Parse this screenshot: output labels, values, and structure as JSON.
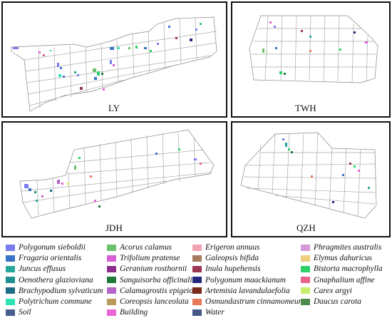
{
  "panels": [
    {
      "id": "LY",
      "label": "LY"
    },
    {
      "id": "TWH",
      "label": "TWH"
    },
    {
      "id": "JDH",
      "label": "JDH"
    },
    {
      "id": "QZH",
      "label": "QZH"
    }
  ],
  "legend": [
    {
      "label": "Polygonum sieboldii",
      "color": "#7b7bef",
      "italic": true
    },
    {
      "label": "Fragaria orientalis",
      "color": "#3a72c7",
      "italic": true
    },
    {
      "label": "Juncus effusus",
      "color": "#25a89a",
      "italic": true
    },
    {
      "label": "Oenothera glazioviana",
      "color": "#1f8f8f",
      "italic": true
    },
    {
      "label": "Brachypodium sylvaticum",
      "color": "#1b6e86",
      "italic": true
    },
    {
      "label": "Polytrichum commune",
      "color": "#2fe3b7",
      "italic": true
    },
    {
      "label": "Soil",
      "color": "#465c8c",
      "italic": true
    },
    {
      "label": "Acorus calamus",
      "color": "#6cc26c",
      "italic": true
    },
    {
      "label": "Trifolium pratense",
      "color": "#d85fd8",
      "italic": true
    },
    {
      "label": "Geranium rosthornii",
      "color": "#8c2f8c",
      "italic": true
    },
    {
      "label": "Sanguisorba officinalis",
      "color": "#1d7a3a",
      "italic": true
    },
    {
      "label": "Calamagrostis epigeios",
      "color": "#b565c9",
      "italic": true
    },
    {
      "label": "Coreopsis lanceolata",
      "color": "#b99a5c",
      "italic": true
    },
    {
      "label": "Building",
      "color": "#ea65d5",
      "italic": true
    },
    {
      "label": "Erigeron annuus",
      "color": "#f2a3b3",
      "italic": true
    },
    {
      "label": "Galeopsis bifida",
      "color": "#a67a5e",
      "italic": true
    },
    {
      "label": "Inula hupehensis",
      "color": "#9c3550",
      "italic": true
    },
    {
      "label": "Polygonum maackianum",
      "color": "#25287f",
      "italic": true
    },
    {
      "label": "Artemisia lavandulaefolia",
      "color": "#7a2b1c",
      "italic": true
    },
    {
      "label": "Osmundastrum cinnamomeum",
      "color": "#e9785a",
      "italic": true
    },
    {
      "label": "Water",
      "color": "#455786",
      "italic": true
    },
    {
      "label": "Phragmites australis",
      "color": "#d49ad8",
      "italic": true
    },
    {
      "label": "Elymus dahuricus",
      "color": "#efcf7f",
      "italic": true
    },
    {
      "label": "Bistorta macrophylla",
      "color": "#2bd16a",
      "italic": true
    },
    {
      "label": "Gnaphalium affine",
      "color": "#e8638a",
      "italic": true
    },
    {
      "label": "Carex argyi",
      "color": "#c8ee6e",
      "italic": true
    },
    {
      "label": "Daucus carota",
      "color": "#4d8a4d",
      "italic": true
    }
  ]
}
